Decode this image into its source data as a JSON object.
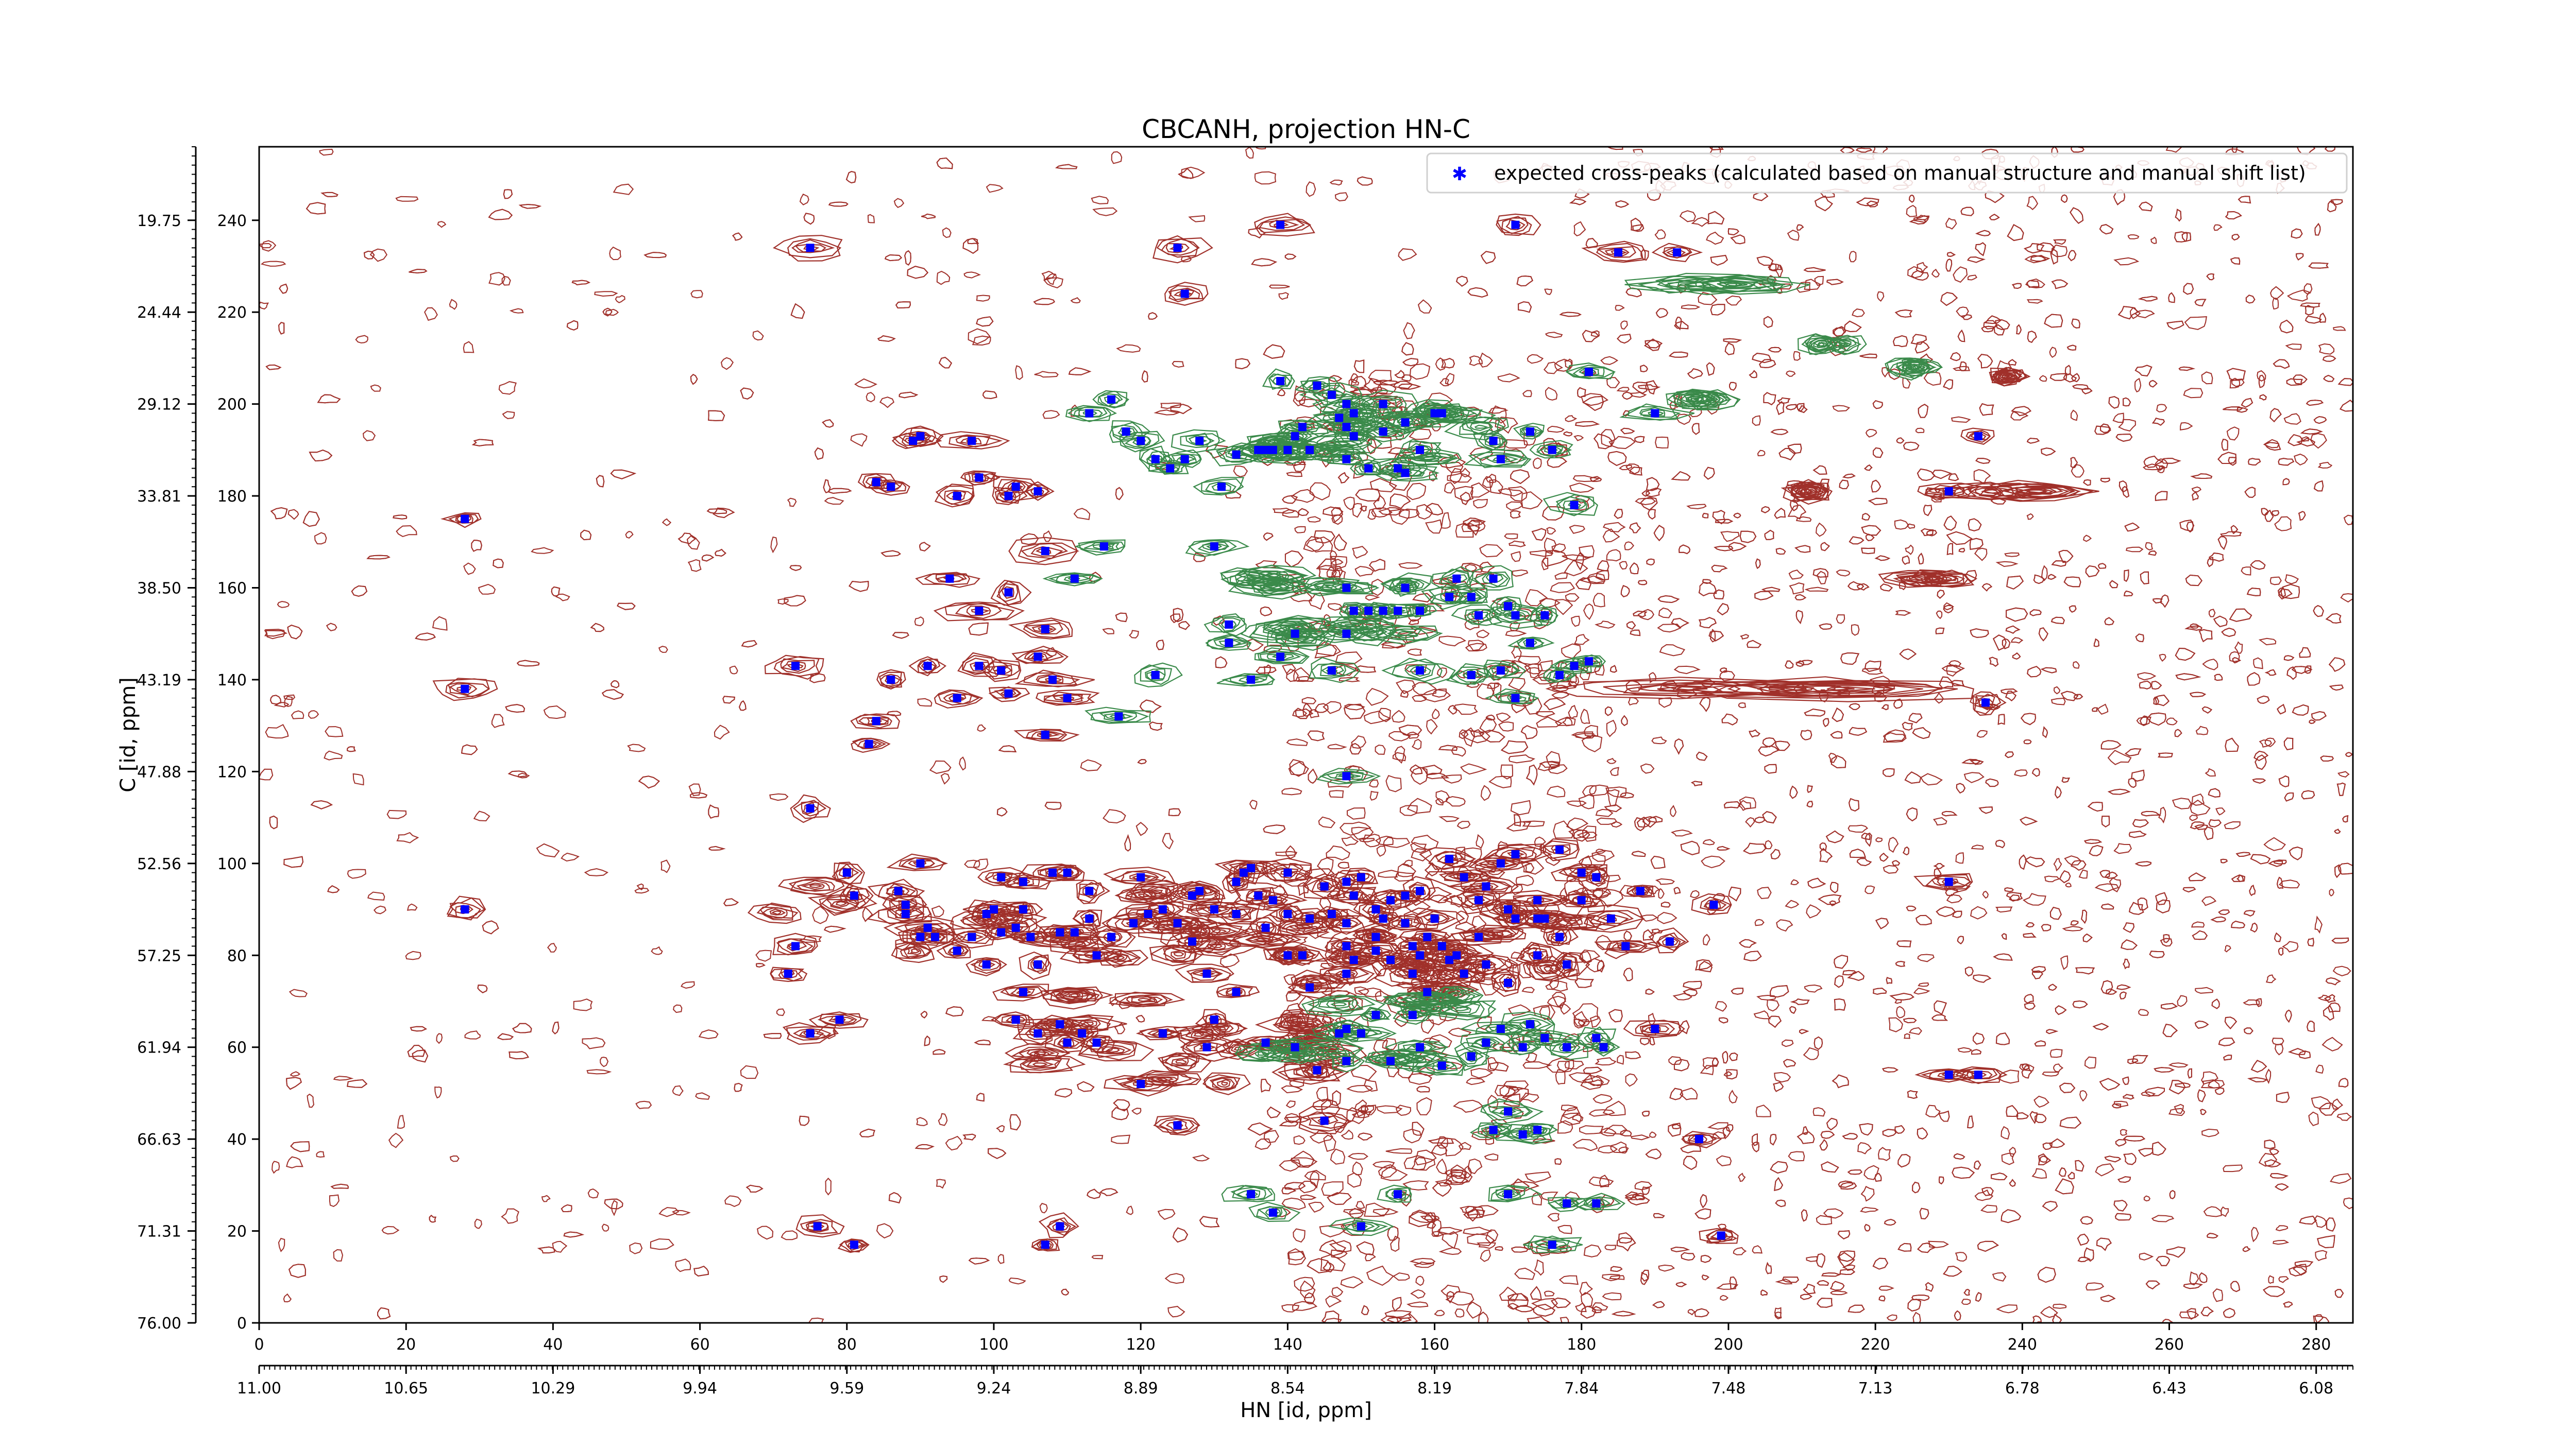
{
  "chart_data": {
    "type": "scatter",
    "title": "CBCANH, projection HN-C",
    "xlabel": "HN [id, ppm]",
    "ylabel": "C [id, ppm]",
    "xlim": [
      0,
      285
    ],
    "ylim": [
      0,
      256
    ],
    "x_ticks": [
      0,
      20,
      40,
      60,
      80,
      100,
      120,
      140,
      160,
      180,
      200,
      220,
      240,
      260,
      280
    ],
    "y_ticks": [
      0,
      20,
      40,
      60,
      80,
      100,
      120,
      140,
      160,
      180,
      200,
      220,
      240
    ],
    "x_ppm_tick_labels": [
      "11.00",
      "10.65",
      "10.29",
      "9.94",
      "9.59",
      "9.24",
      "8.89",
      "8.54",
      "8.19",
      "7.84",
      "7.48",
      "7.13",
      "6.78",
      "6.43",
      "6.08"
    ],
    "y_ppm_tick_labels": [
      "76.00",
      "71.31",
      "66.63",
      "61.94",
      "57.25",
      "52.56",
      "47.88",
      "43.19",
      "38.50",
      "33.81",
      "29.12",
      "24.44",
      "19.75"
    ],
    "legend": {
      "placement": "top-right",
      "entries": [
        "expected cross-peaks (calculated based on manual structure and manual shift list)"
      ]
    },
    "colors": {
      "marker": "#0000ff",
      "positive_contour": "#a0302a",
      "negative_contour": "#3a8a4a"
    },
    "series": [
      {
        "name": "expected cross-peaks (calculated based on manual structure and manual shift list)",
        "points": [
          [
            28,
            175
          ],
          [
            28,
            138
          ],
          [
            28,
            90
          ],
          [
            75,
            234
          ],
          [
            75,
            112
          ],
          [
            73,
            143
          ],
          [
            73,
            82
          ],
          [
            72,
            76
          ],
          [
            75,
            63
          ],
          [
            76,
            21
          ],
          [
            81,
            17
          ],
          [
            80,
            98
          ],
          [
            81,
            93
          ],
          [
            79,
            66
          ],
          [
            83,
            126
          ],
          [
            84,
            131
          ],
          [
            84,
            183
          ],
          [
            86,
            182
          ],
          [
            86,
            140
          ],
          [
            87,
            94
          ],
          [
            88,
            91
          ],
          [
            88,
            89
          ],
          [
            89,
            192
          ],
          [
            90,
            193
          ],
          [
            90,
            100
          ],
          [
            90,
            84
          ],
          [
            91,
            86
          ],
          [
            91,
            143
          ],
          [
            92,
            84
          ],
          [
            94,
            162
          ],
          [
            95,
            180
          ],
          [
            95,
            136
          ],
          [
            95,
            81
          ],
          [
            97,
            84
          ],
          [
            98,
            155
          ],
          [
            98,
            143
          ],
          [
            98,
            184
          ],
          [
            97,
            192
          ],
          [
            99,
            89
          ],
          [
            99,
            78
          ],
          [
            100,
            90
          ],
          [
            101,
            97
          ],
          [
            101,
            85
          ],
          [
            101,
            142
          ],
          [
            102,
            180
          ],
          [
            102,
            159
          ],
          [
            103,
            182
          ],
          [
            102,
            137
          ],
          [
            103,
            86
          ],
          [
            103,
            66
          ],
          [
            104,
            90
          ],
          [
            104,
            72
          ],
          [
            104,
            96
          ],
          [
            105,
            84
          ],
          [
            106,
            78
          ],
          [
            106,
            63
          ],
          [
            106,
            145
          ],
          [
            106,
            181
          ],
          [
            107,
            168
          ],
          [
            107,
            151
          ],
          [
            107,
            128
          ],
          [
            107,
            17
          ],
          [
            108,
            140
          ],
          [
            108,
            98
          ],
          [
            109,
            21
          ],
          [
            109,
            65
          ],
          [
            109,
            85
          ],
          [
            110,
            61
          ],
          [
            110,
            98
          ],
          [
            110,
            136
          ],
          [
            111,
            162
          ],
          [
            111,
            85
          ],
          [
            112,
            63
          ],
          [
            113,
            198
          ],
          [
            113,
            94
          ],
          [
            113,
            88
          ],
          [
            114,
            61
          ],
          [
            114,
            80
          ],
          [
            115,
            169
          ],
          [
            116,
            201
          ],
          [
            116,
            84
          ],
          [
            117,
            132
          ],
          [
            118,
            194
          ],
          [
            119,
            87
          ],
          [
            120,
            192
          ],
          [
            120,
            97
          ],
          [
            120,
            52
          ],
          [
            121,
            89
          ],
          [
            122,
            141
          ],
          [
            122,
            188
          ],
          [
            123,
            90
          ],
          [
            123,
            63
          ],
          [
            124,
            186
          ],
          [
            125,
            87
          ],
          [
            125,
            43
          ],
          [
            125,
            234
          ],
          [
            126,
            224
          ],
          [
            126,
            188
          ],
          [
            127,
            83
          ],
          [
            127,
            93
          ],
          [
            128,
            192
          ],
          [
            128,
            94
          ],
          [
            129,
            76
          ],
          [
            129,
            60
          ],
          [
            130,
            90
          ],
          [
            130,
            66
          ],
          [
            130,
            169
          ],
          [
            131,
            182
          ],
          [
            132,
            152
          ],
          [
            132,
            148
          ],
          [
            133,
            89
          ],
          [
            133,
            72
          ],
          [
            133,
            96
          ],
          [
            133,
            189
          ],
          [
            134,
            98
          ],
          [
            135,
            28
          ],
          [
            135,
            99
          ],
          [
            135,
            140
          ],
          [
            136,
            93
          ],
          [
            136,
            190
          ],
          [
            137,
            86
          ],
          [
            137,
            61
          ],
          [
            137,
            190
          ],
          [
            138,
            92
          ],
          [
            138,
            24
          ],
          [
            138,
            190
          ],
          [
            139,
            239
          ],
          [
            139,
            205
          ],
          [
            139,
            145
          ],
          [
            140,
            80
          ],
          [
            140,
            98
          ],
          [
            140,
            89
          ],
          [
            140,
            190
          ],
          [
            141,
            60
          ],
          [
            141,
            193
          ],
          [
            141,
            150
          ],
          [
            142,
            195
          ],
          [
            142,
            80
          ],
          [
            143,
            88
          ],
          [
            143,
            73
          ],
          [
            143,
            190
          ],
          [
            144,
            55
          ],
          [
            144,
            204
          ],
          [
            145,
            44
          ],
          [
            145,
            95
          ],
          [
            146,
            142
          ],
          [
            146,
            202
          ],
          [
            146,
            89
          ],
          [
            147,
            197
          ],
          [
            147,
            63
          ],
          [
            148,
            200
          ],
          [
            148,
            195
          ],
          [
            148,
            188
          ],
          [
            148,
            160
          ],
          [
            148,
            150
          ],
          [
            148,
            119
          ],
          [
            148,
            96
          ],
          [
            148,
            87
          ],
          [
            148,
            82
          ],
          [
            148,
            76
          ],
          [
            148,
            64
          ],
          [
            148,
            57
          ],
          [
            149,
            198
          ],
          [
            149,
            193
          ],
          [
            149,
            155
          ],
          [
            149,
            93
          ],
          [
            149,
            79
          ],
          [
            150,
            21
          ],
          [
            150,
            63
          ],
          [
            150,
            97
          ],
          [
            151,
            186
          ],
          [
            151,
            155
          ],
          [
            152,
            90
          ],
          [
            152,
            84
          ],
          [
            152,
            81
          ],
          [
            152,
            67
          ],
          [
            153,
            200
          ],
          [
            153,
            194
          ],
          [
            153,
            155
          ],
          [
            153,
            88
          ],
          [
            154,
            92
          ],
          [
            154,
            79
          ],
          [
            154,
            57
          ],
          [
            155,
            186
          ],
          [
            155,
            155
          ],
          [
            155,
            28
          ],
          [
            156,
            196
          ],
          [
            156,
            185
          ],
          [
            156,
            160
          ],
          [
            156,
            93
          ],
          [
            156,
            87
          ],
          [
            157,
            82
          ],
          [
            157,
            76
          ],
          [
            157,
            67
          ],
          [
            158,
            190
          ],
          [
            158,
            155
          ],
          [
            158,
            142
          ],
          [
            158,
            94
          ],
          [
            158,
            80
          ],
          [
            158,
            60
          ],
          [
            159,
            84
          ],
          [
            159,
            72
          ],
          [
            160,
            198
          ],
          [
            160,
            88
          ],
          [
            161,
            198
          ],
          [
            161,
            82
          ],
          [
            161,
            56
          ],
          [
            162,
            158
          ],
          [
            162,
            101
          ],
          [
            162,
            79
          ],
          [
            163,
            162
          ],
          [
            163,
            80
          ],
          [
            164,
            97
          ],
          [
            164,
            76
          ],
          [
            165,
            158
          ],
          [
            165,
            141
          ],
          [
            165,
            58
          ],
          [
            166,
            154
          ],
          [
            166,
            92
          ],
          [
            166,
            84
          ],
          [
            167,
            95
          ],
          [
            167,
            78
          ],
          [
            167,
            61
          ],
          [
            168,
            192
          ],
          [
            168,
            162
          ],
          [
            168,
            42
          ],
          [
            169,
            188
          ],
          [
            169,
            142
          ],
          [
            169,
            100
          ],
          [
            169,
            64
          ],
          [
            170,
            156
          ],
          [
            170,
            90
          ],
          [
            170,
            74
          ],
          [
            170,
            46
          ],
          [
            170,
            28
          ],
          [
            171,
            239
          ],
          [
            171,
            154
          ],
          [
            171,
            136
          ],
          [
            171,
            102
          ],
          [
            171,
            88
          ],
          [
            172,
            60
          ],
          [
            172,
            41
          ],
          [
            173,
            148
          ],
          [
            173,
            65
          ],
          [
            173,
            194
          ],
          [
            174,
            92
          ],
          [
            174,
            88
          ],
          [
            174,
            80
          ],
          [
            174,
            42
          ],
          [
            175,
            62
          ],
          [
            175,
            154
          ],
          [
            175,
            88
          ],
          [
            176,
            17
          ],
          [
            176,
            190
          ],
          [
            177,
            141
          ],
          [
            177,
            103
          ],
          [
            177,
            84
          ],
          [
            178,
            78
          ],
          [
            178,
            60
          ],
          [
            178,
            26
          ],
          [
            179,
            178
          ],
          [
            179,
            143
          ],
          [
            180,
            92
          ],
          [
            180,
            98
          ],
          [
            181,
            207
          ],
          [
            181,
            144
          ],
          [
            182,
            97
          ],
          [
            182,
            62
          ],
          [
            182,
            26
          ],
          [
            183,
            60
          ],
          [
            184,
            88
          ],
          [
            185,
            233
          ],
          [
            186,
            82
          ],
          [
            188,
            94
          ],
          [
            190,
            198
          ],
          [
            190,
            64
          ],
          [
            192,
            83
          ],
          [
            193,
            233
          ],
          [
            196,
            40
          ],
          [
            198,
            91
          ],
          [
            199,
            19
          ],
          [
            230,
            181
          ],
          [
            230,
            54
          ],
          [
            230,
            96
          ],
          [
            234,
            193
          ],
          [
            234,
            54
          ],
          [
            235,
            135
          ],
          [
            170,
            90
          ]
        ]
      }
    ]
  }
}
